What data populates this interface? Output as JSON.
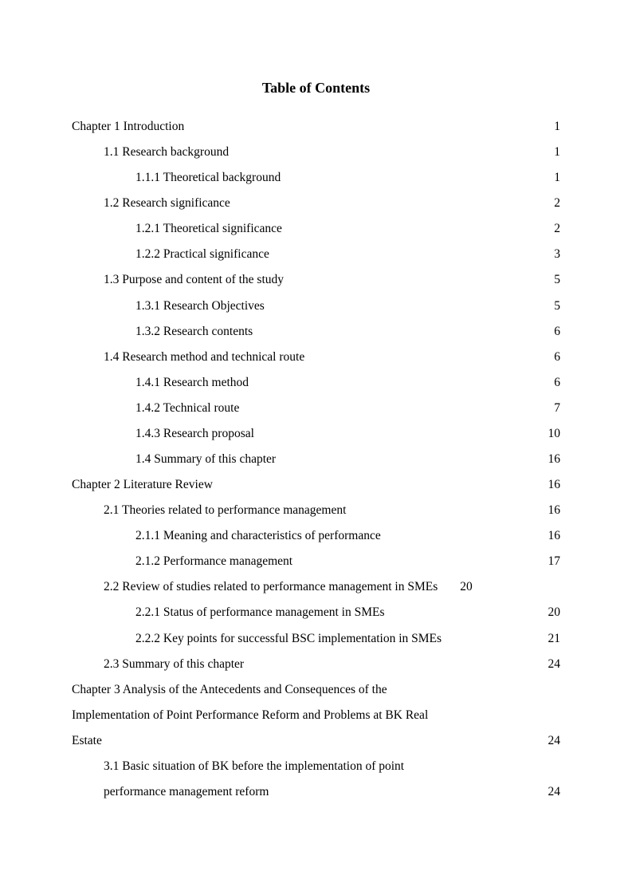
{
  "title": "Table of Contents",
  "entries": [
    {
      "level": 0,
      "label": "Chapter 1 Introduction",
      "page": "1"
    },
    {
      "level": 1,
      "label": "1.1 Research background",
      "page": "1"
    },
    {
      "level": 2,
      "label": "1.1.1 Theoretical background",
      "page": "1"
    },
    {
      "level": 1,
      "label": "1.2 Research significance",
      "page": "2"
    },
    {
      "level": 2,
      "label": "1.2.1 Theoretical significance",
      "page": "2"
    },
    {
      "level": 2,
      "label": "1.2.2 Practical significance",
      "page": "3"
    },
    {
      "level": 1,
      "label": "1.3 Purpose and content of the study",
      "page": "5"
    },
    {
      "level": 2,
      "label": "1.3.1 Research Objectives",
      "page": " 5"
    },
    {
      "level": 2,
      "label": "1.3.2 Research contents",
      "page": " 6"
    },
    {
      "level": 1,
      "label": "1.4 Research method and technical route",
      "page": "6"
    },
    {
      "level": 2,
      "label": "1.4.1 Research method",
      "page": "6"
    },
    {
      "level": 2,
      "label": "1.4.2 Technical route",
      "page": " 7"
    },
    {
      "level": 2,
      "label": "1.4.3 Research proposal",
      "page": "10"
    },
    {
      "level": 2,
      "label": "1.4 Summary of this chapter",
      "page": "16"
    },
    {
      "level": 0,
      "label": "Chapter 2 Literature Review",
      "page": " 16"
    },
    {
      "level": 1,
      "label": "2.1 Theories related to performance management",
      "page": "16"
    },
    {
      "level": 2,
      "label": "2.1.1 Meaning and characteristics of performance",
      "page": " 16"
    },
    {
      "level": 2,
      "label": "2.1.2 Performance management",
      "page": " 17"
    },
    {
      "level": 1,
      "label": "2.2 Review of studies related to performance management in SMEs",
      "page": "20",
      "tight": true
    },
    {
      "level": 2,
      "label": "2.2.1 Status of performance management in SMEs",
      "page": "20"
    },
    {
      "level": 2,
      "label": "2.2.2 Key points for successful BSC implementation in SMEs",
      "page": " 21"
    },
    {
      "level": 1,
      "label": "2.3 Summary of this chapter",
      "page": "24"
    }
  ],
  "multiline_chapter3": {
    "level": 0,
    "lines": [
      "Chapter 3 Analysis of the Antecedents and Consequences of the",
      "Implementation of Point Performance Reform and Problems at BK Real"
    ],
    "last_label": "Estate",
    "page": "24"
  },
  "multiline_3_1": {
    "level": 1,
    "lines": [
      "3.1 Basic situation of BK before the implementation of point"
    ],
    "last_label": "performance management reform",
    "page": " 24"
  }
}
